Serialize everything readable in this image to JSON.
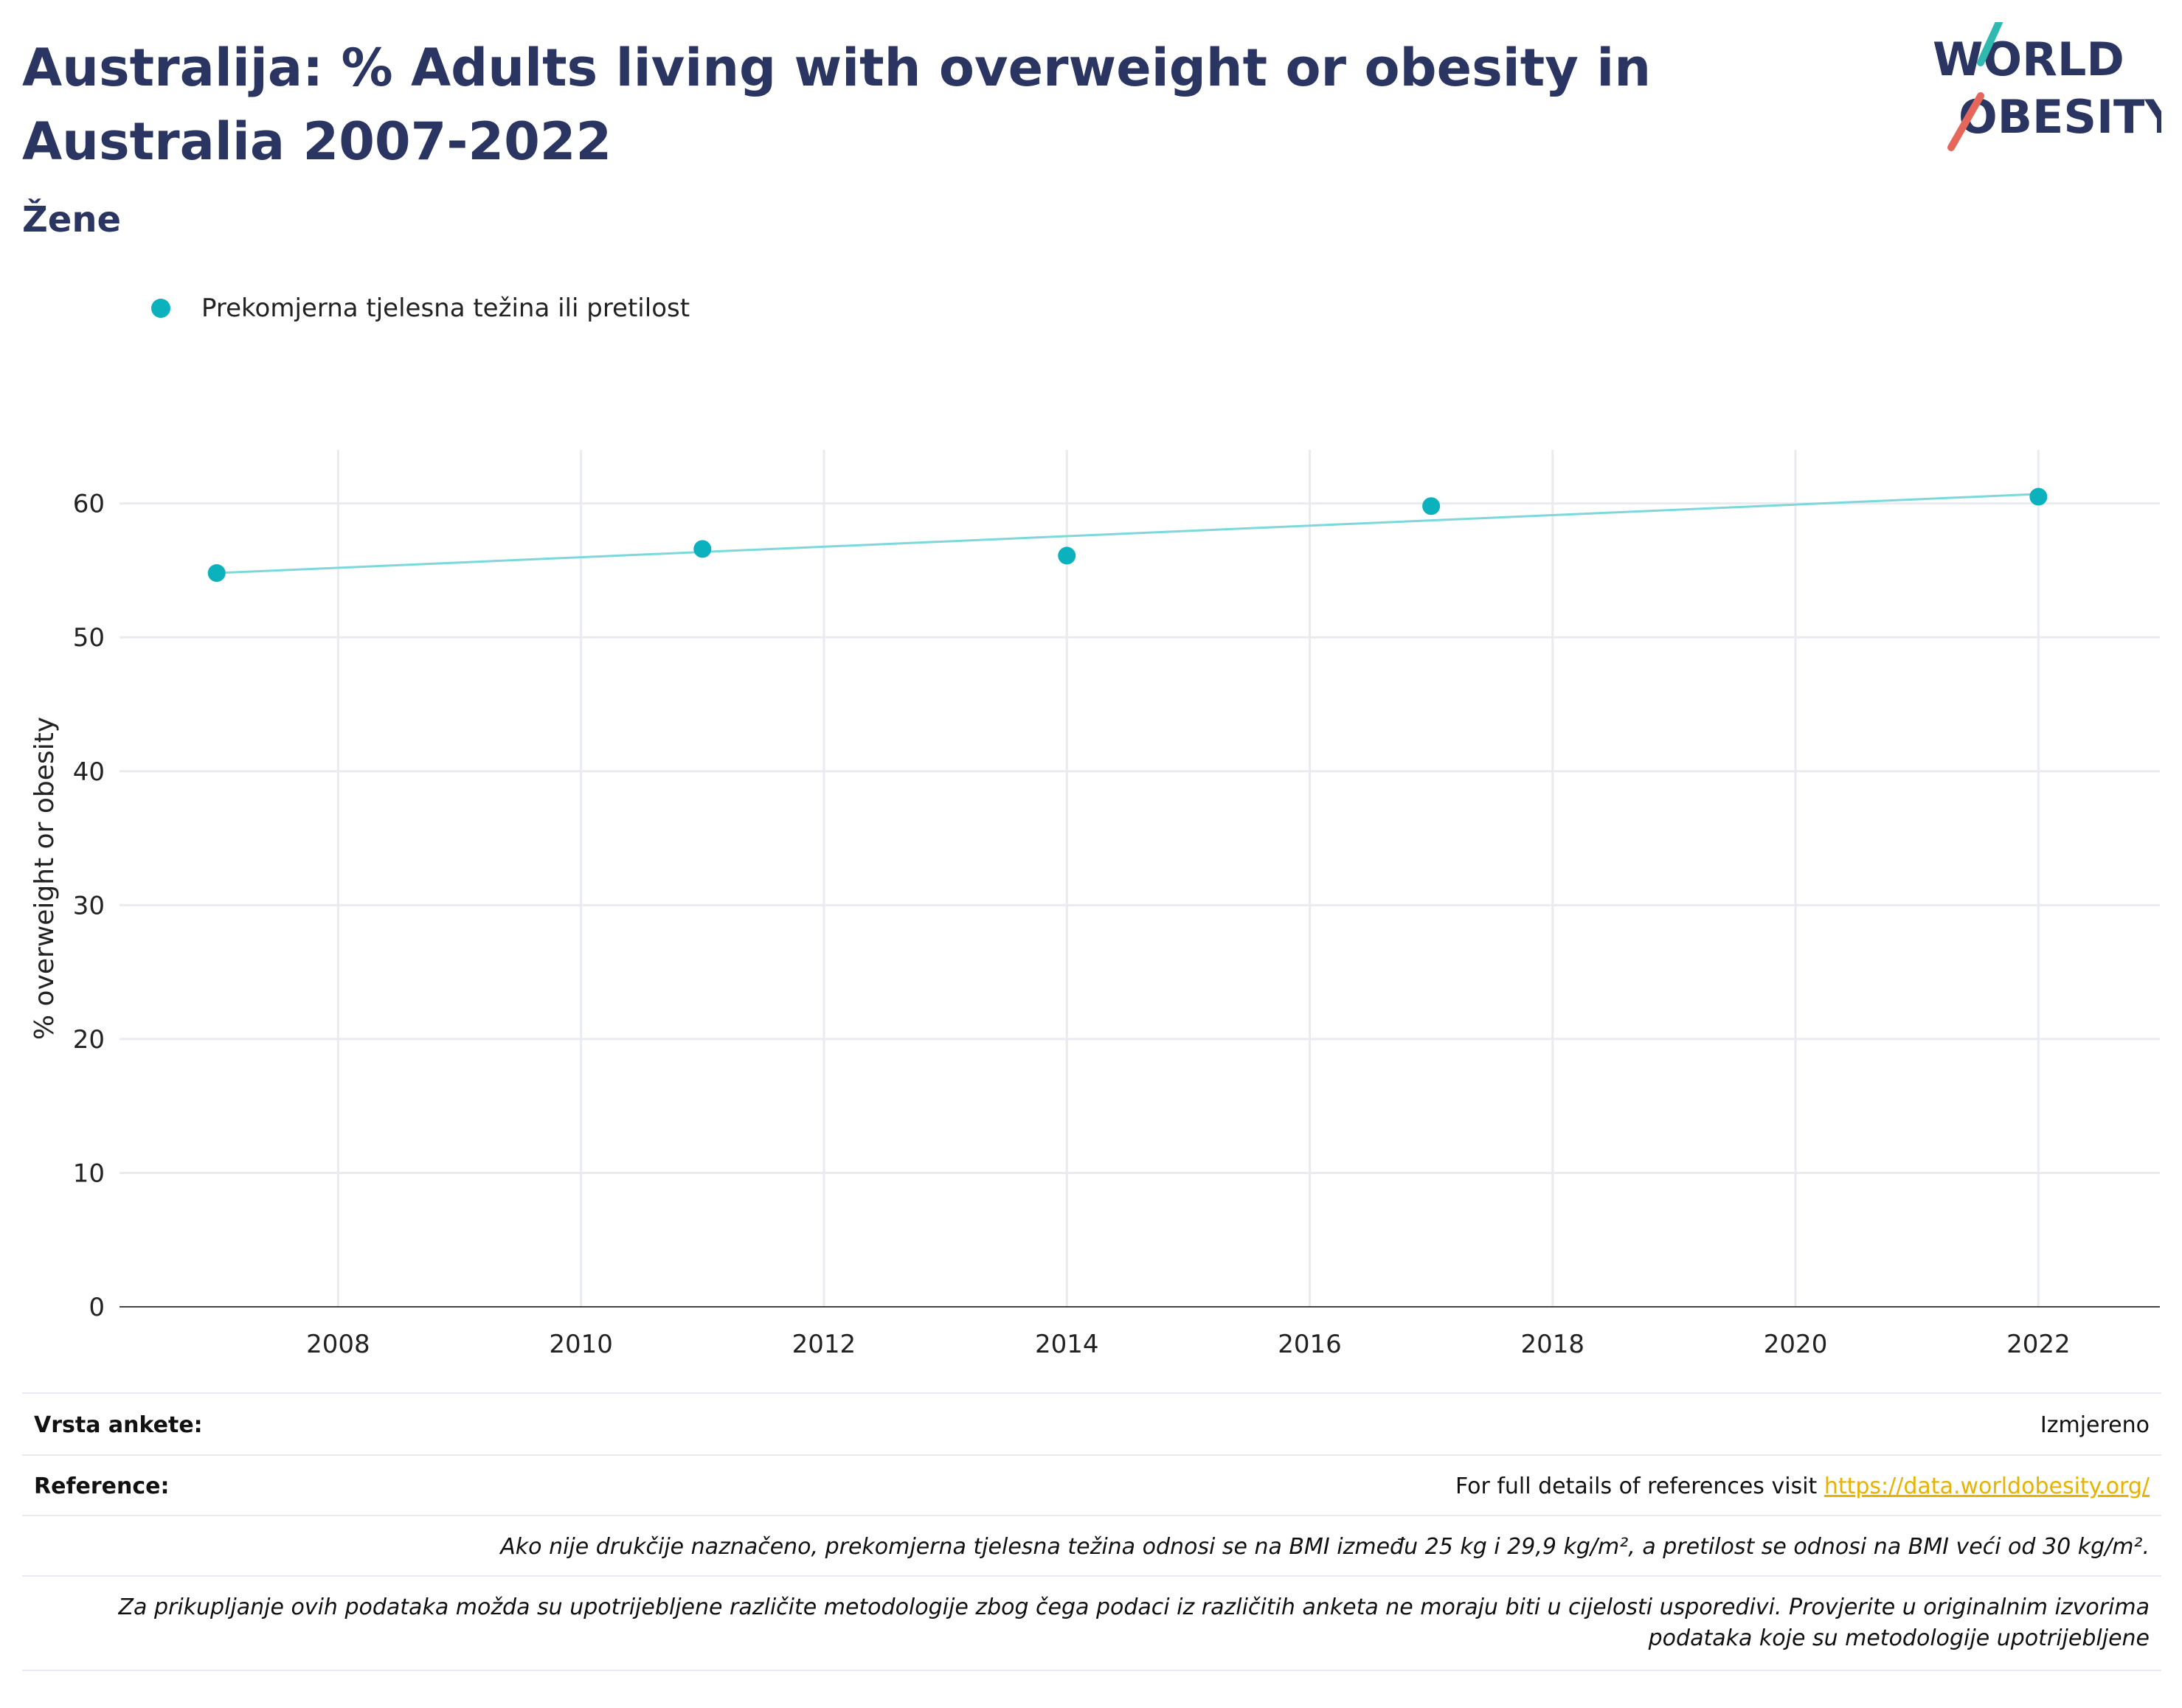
{
  "title": "Australija: % Adults living with overweight or obesity in Australia 2007-2022",
  "subtitle": "Žene",
  "logo": {
    "line1": "WORLD",
    "line2": "OBESITY"
  },
  "legend": {
    "label": "Prekomjerna tjelesna težina ili pretilost"
  },
  "colors": {
    "series": "#0bb1bd",
    "trend": "#7dd8dc",
    "title": "#2b3561",
    "link": "#e8b200"
  },
  "chart_data": {
    "type": "scatter",
    "title": "Australija: % Adults living with overweight or obesity in Australia 2007-2022",
    "subtitle": "Žene",
    "xlabel": "",
    "ylabel": "% overweight or obesity",
    "xlim": [
      2006.2,
      2023
    ],
    "ylim": [
      0,
      64
    ],
    "x_ticks": [
      2008,
      2010,
      2012,
      2014,
      2016,
      2018,
      2020,
      2022
    ],
    "y_ticks": [
      0,
      10,
      20,
      30,
      40,
      50,
      60
    ],
    "grid": true,
    "legend_position": "top-left",
    "series": [
      {
        "name": "Prekomjerna tjelesna težina ili pretilost",
        "x": [
          2007,
          2011,
          2014,
          2017,
          2022
        ],
        "y": [
          54.8,
          56.6,
          56.1,
          59.8,
          60.5
        ]
      }
    ],
    "trendline": {
      "x": [
        2007,
        2022
      ],
      "y": [
        54.8,
        60.7
      ]
    }
  },
  "table": {
    "survey_label": "Vrsta ankete:",
    "survey_value": "Izmjereno",
    "reference_label": "Reference:",
    "reference_text": "For full details of references visit ",
    "reference_link": "https://data.worldobesity.org/",
    "note1": "Ako nije drukčije naznačeno, prekomjerna tjelesna težina odnosi se na BMI između 25 kg i 29,9 kg/m², a pretilost se odnosi na BMI veći od 30 kg/m².",
    "note2_line1": "Za prikupljanje ovih podataka možda su upotrijebljene različite metodologije zbog čega podaci iz različitih anketa ne moraju biti u cijelosti usporedivi. Provjerite u originalnim izvorima",
    "note2_line2": "podataka koje su metodologije upotrijebljene"
  }
}
